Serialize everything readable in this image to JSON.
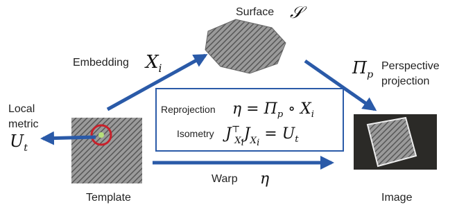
{
  "nodes": {
    "surface": {
      "label": "Surface",
      "symbol": "𝒮"
    },
    "template": {
      "label": "Template"
    },
    "image": {
      "label": "Image"
    }
  },
  "edges": {
    "embedding": {
      "label": "Embedding",
      "symbol": [
        "X",
        "i"
      ]
    },
    "projection": {
      "symbol": [
        "Π",
        "p"
      ],
      "label": [
        "Perspective",
        "projection"
      ]
    },
    "local_metric": {
      "label": [
        "Local",
        "metric"
      ],
      "symbol": [
        "U",
        "t"
      ]
    },
    "warp": {
      "label": "Warp",
      "symbol": "η"
    }
  },
  "equations": {
    "reprojection": {
      "name": "Reprojection",
      "formula": [
        "η = ",
        "Π",
        "p",
        " ∘ ",
        "X",
        "i"
      ]
    },
    "isometry": {
      "name": "Isometry",
      "formula": [
        "J",
        "⊤",
        "X",
        "i",
        "J",
        "X",
        "i",
        " = ",
        "U",
        "t"
      ]
    }
  }
}
